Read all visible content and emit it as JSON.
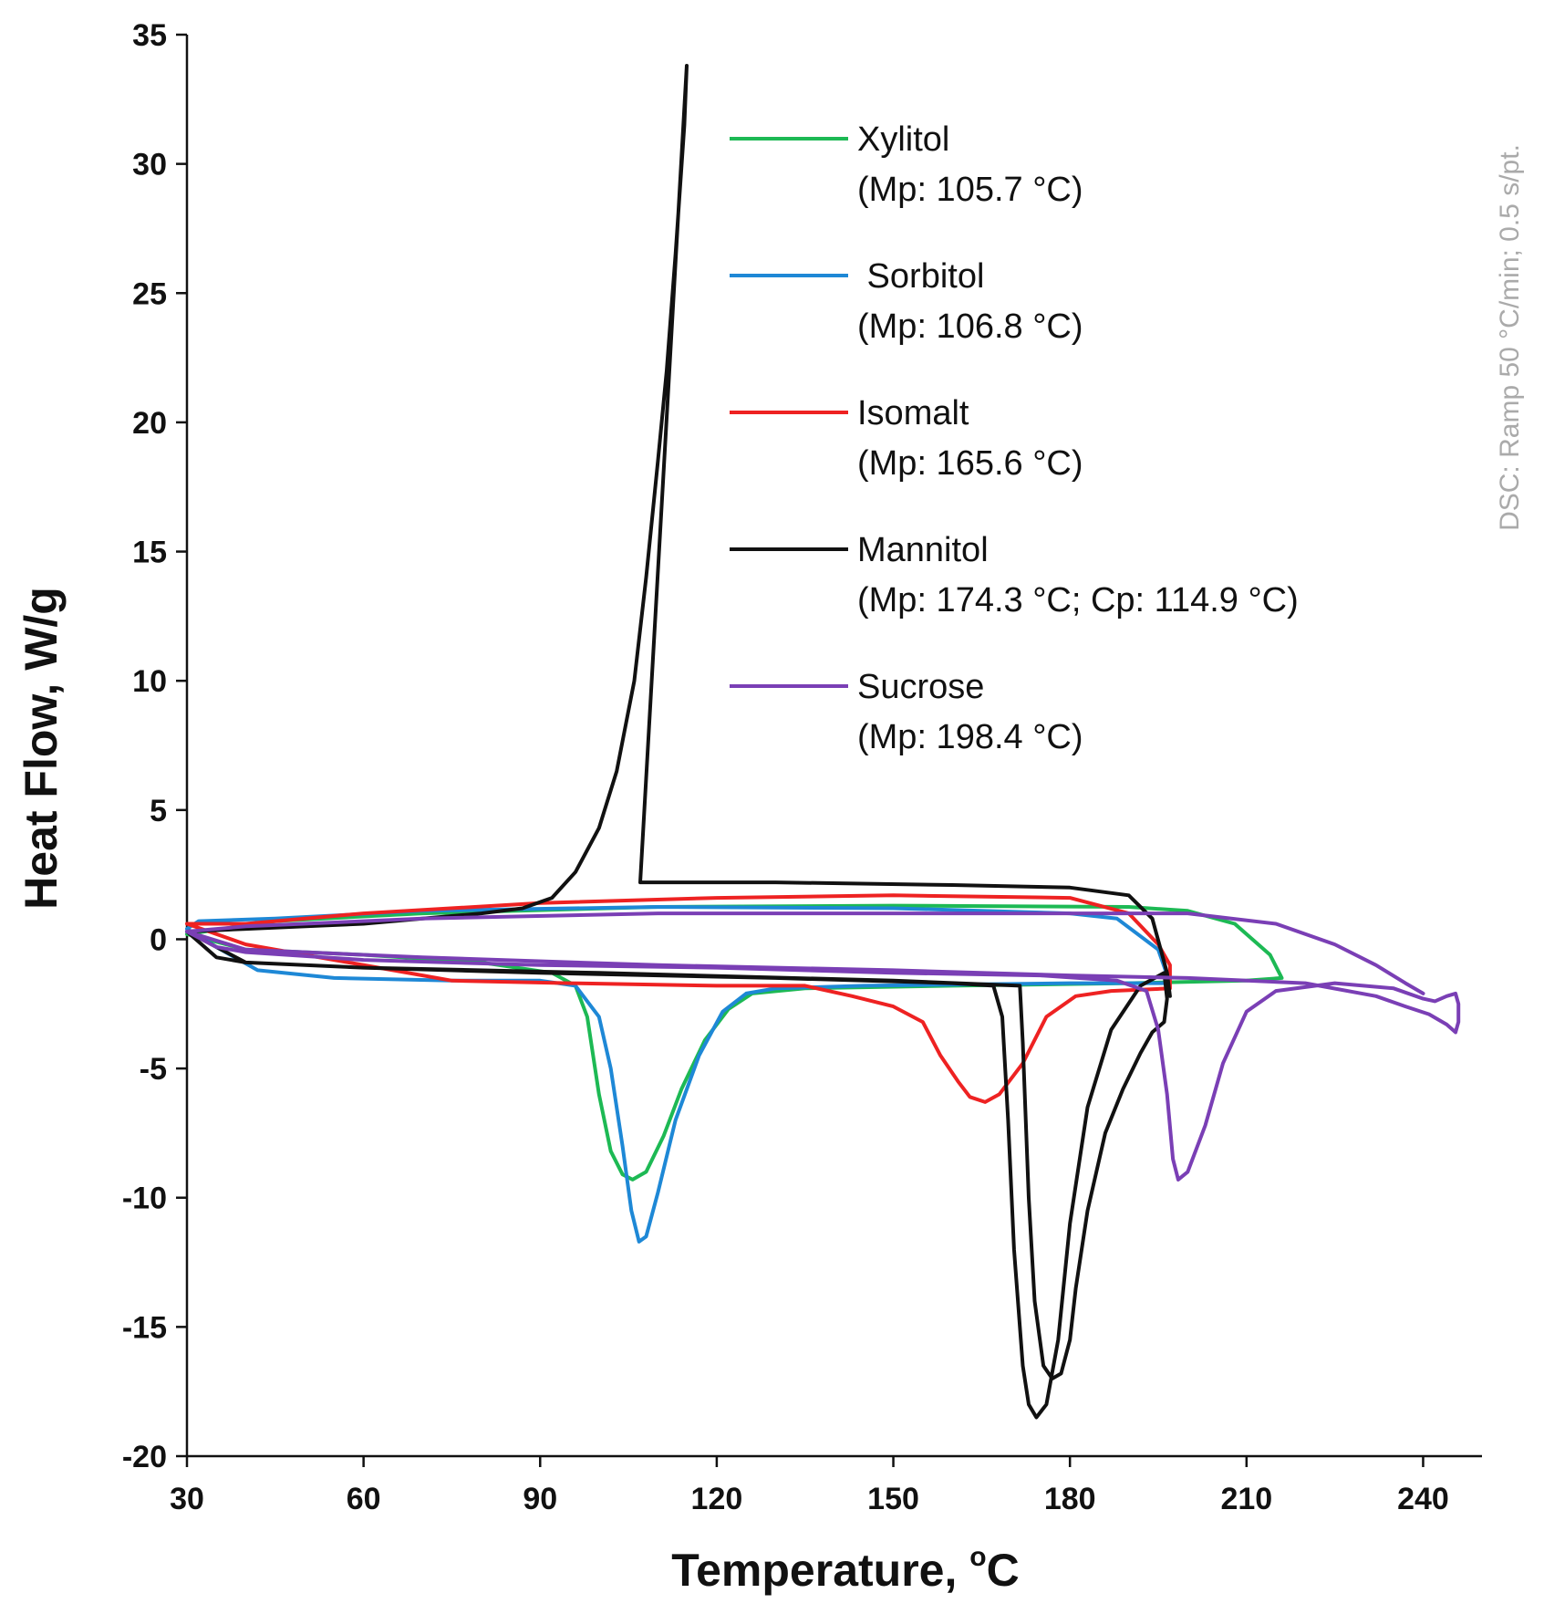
{
  "chart_data": {
    "type": "line",
    "xlabel": "Temperature, ",
    "xlabel_sup": "o",
    "xlabel_unit": "C",
    "ylabel": "Heat Flow, W/g",
    "xlim": [
      30,
      250
    ],
    "ylim": [
      -20,
      35
    ],
    "xticks": [
      30,
      60,
      90,
      120,
      150,
      180,
      210,
      240
    ],
    "yticks": [
      35,
      30,
      25,
      20,
      15,
      10,
      5,
      0,
      -5,
      -10,
      -15,
      -20
    ],
    "side_note": "DSC: Ramp 50 °C/min; 0.5 s/pt.",
    "legend_position": "upper-center",
    "series": [
      {
        "name": "Xylitol",
        "detail": "(Mp: 105.7 °C)",
        "color": "#1db954",
        "points": [
          [
            30,
            0.2
          ],
          [
            40,
            -0.4
          ],
          [
            60,
            -0.6
          ],
          [
            80,
            -0.9
          ],
          [
            92,
            -1.3
          ],
          [
            96,
            -1.8
          ],
          [
            98,
            -3
          ],
          [
            100,
            -6
          ],
          [
            102,
            -8.2
          ],
          [
            104,
            -9.1
          ],
          [
            105.7,
            -9.3
          ],
          [
            108,
            -9
          ],
          [
            111,
            -7.6
          ],
          [
            114,
            -5.8
          ],
          [
            118,
            -3.9
          ],
          [
            122,
            -2.7
          ],
          [
            126,
            -2.1
          ],
          [
            135,
            -1.9
          ],
          [
            160,
            -1.8
          ],
          [
            190,
            -1.7
          ],
          [
            210,
            -1.6
          ],
          [
            216,
            -1.5
          ],
          [
            214,
            -0.6
          ],
          [
            208,
            0.6
          ],
          [
            200,
            1.1
          ],
          [
            190,
            1.25
          ],
          [
            150,
            1.3
          ],
          [
            110,
            1.25
          ],
          [
            70,
            1.0
          ],
          [
            45,
            0.7
          ],
          [
            33,
            0.3
          ],
          [
            30,
            0.2
          ]
        ]
      },
      {
        "name": " Sorbitol",
        "detail": "(Mp: 106.8 °C)",
        "color": "#1e88d6",
        "points": [
          [
            30,
            0.4
          ],
          [
            35,
            -0.3
          ],
          [
            42,
            -1.2
          ],
          [
            55,
            -1.5
          ],
          [
            75,
            -1.6
          ],
          [
            90,
            -1.6
          ],
          [
            96,
            -1.8
          ],
          [
            100,
            -3
          ],
          [
            102,
            -5
          ],
          [
            104,
            -8
          ],
          [
            105.5,
            -10.5
          ],
          [
            106.8,
            -11.7
          ],
          [
            108,
            -11.5
          ],
          [
            110,
            -9.8
          ],
          [
            113,
            -7
          ],
          [
            117,
            -4.5
          ],
          [
            121,
            -2.8
          ],
          [
            125,
            -2.1
          ],
          [
            130,
            -1.9
          ],
          [
            145,
            -1.8
          ],
          [
            180,
            -1.7
          ],
          [
            195,
            -1.7
          ],
          [
            197,
            -1.7
          ],
          [
            195,
            -0.4
          ],
          [
            188,
            0.8
          ],
          [
            180,
            1.0
          ],
          [
            150,
            1.2
          ],
          [
            110,
            1.25
          ],
          [
            70,
            1.1
          ],
          [
            45,
            0.8
          ],
          [
            32,
            0.7
          ],
          [
            30,
            0.4
          ]
        ]
      },
      {
        "name": "Isomalt",
        "detail": "(Mp: 165.6 °C)",
        "color": "#ee2222",
        "points": [
          [
            30,
            0.6
          ],
          [
            40,
            -0.2
          ],
          [
            55,
            -0.8
          ],
          [
            65,
            -1.2
          ],
          [
            75,
            -1.6
          ],
          [
            95,
            -1.7
          ],
          [
            120,
            -1.8
          ],
          [
            135,
            -1.8
          ],
          [
            143,
            -2.2
          ],
          [
            150,
            -2.6
          ],
          [
            155,
            -3.2
          ],
          [
            158,
            -4.5
          ],
          [
            161,
            -5.5
          ],
          [
            163,
            -6.1
          ],
          [
            165.6,
            -6.3
          ],
          [
            168,
            -6.0
          ],
          [
            172,
            -4.8
          ],
          [
            176,
            -3.0
          ],
          [
            181,
            -2.2
          ],
          [
            187,
            -2.0
          ],
          [
            197,
            -1.9
          ],
          [
            197,
            -1.0
          ],
          [
            195,
            -0.2
          ],
          [
            190,
            1.0
          ],
          [
            180,
            1.6
          ],
          [
            150,
            1.7
          ],
          [
            120,
            1.6
          ],
          [
            90,
            1.4
          ],
          [
            60,
            1.0
          ],
          [
            40,
            0.6
          ],
          [
            30,
            0.6
          ]
        ]
      },
      {
        "name": "Mannitol",
        "detail": "(Mp: 174.3 °C; Cp: 114.9 °C)",
        "color": "#111111",
        "points": [
          [
            30,
            0.3
          ],
          [
            40,
            -0.9
          ],
          [
            60,
            -1.1
          ],
          [
            90,
            -1.3
          ],
          [
            130,
            -1.5
          ],
          [
            160,
            -1.7
          ],
          [
            167,
            -1.8
          ],
          [
            168.5,
            -3
          ],
          [
            169.5,
            -7
          ],
          [
            170.5,
            -12
          ],
          [
            172,
            -16.5
          ],
          [
            173,
            -18
          ],
          [
            174.3,
            -18.5
          ],
          [
            176,
            -18
          ],
          [
            178,
            -15.5
          ],
          [
            180,
            -11
          ],
          [
            183,
            -6.5
          ],
          [
            187,
            -3.5
          ],
          [
            192,
            -1.8
          ],
          [
            196,
            -1.3
          ],
          [
            196.5,
            -2.3
          ],
          [
            196,
            -3.2
          ],
          [
            194,
            -3.6
          ],
          [
            192,
            -4.4
          ],
          [
            189,
            -5.8
          ],
          [
            186,
            -7.5
          ],
          [
            183,
            -10.5
          ],
          [
            181,
            -13.5
          ],
          [
            180,
            -15.5
          ],
          [
            178.5,
            -16.8
          ],
          [
            177,
            -17
          ],
          [
            175.5,
            -16.5
          ],
          [
            174,
            -14
          ],
          [
            173,
            -10
          ],
          [
            172,
            -4
          ],
          [
            171.5,
            -1.8
          ],
          [
            150,
            -1.6
          ],
          [
            100,
            -1.3
          ],
          [
            60,
            -1.1
          ],
          [
            40,
            -0.9
          ],
          [
            35,
            -0.7
          ],
          [
            30,
            0.3
          ],
          [
            40,
            0.4
          ],
          [
            60,
            0.6
          ],
          [
            80,
            1.0
          ],
          [
            87,
            1.2
          ],
          [
            92,
            1.6
          ],
          [
            96,
            2.6
          ],
          [
            100,
            4.3
          ],
          [
            103,
            6.5
          ],
          [
            106,
            10
          ],
          [
            108,
            14
          ],
          [
            110,
            18.5
          ],
          [
            111.5,
            22
          ],
          [
            113,
            26.5
          ],
          [
            114.5,
            31.5
          ],
          [
            114.9,
            33.8
          ],
          [
            107,
            2.2
          ],
          [
            130,
            2.2
          ],
          [
            160,
            2.1
          ],
          [
            180,
            2.0
          ],
          [
            190,
            1.7
          ],
          [
            194,
            0.8
          ],
          [
            196.5,
            -1.3
          ],
          [
            197,
            -2.2
          ]
        ]
      },
      {
        "name": "Sucrose",
        "detail": "(Mp: 198.4 °C)",
        "color": "#7a3fb5",
        "points": [
          [
            30,
            0.3
          ],
          [
            35,
            -0.3
          ],
          [
            40,
            -0.5
          ],
          [
            60,
            -0.8
          ],
          [
            90,
            -1.0
          ],
          [
            120,
            -1.1
          ],
          [
            150,
            -1.3
          ],
          [
            175,
            -1.4
          ],
          [
            188,
            -1.6
          ],
          [
            193,
            -2.0
          ],
          [
            195,
            -3.5
          ],
          [
            196.5,
            -6
          ],
          [
            197.5,
            -8.5
          ],
          [
            198.4,
            -9.3
          ],
          [
            200,
            -9.0
          ],
          [
            203,
            -7.2
          ],
          [
            206,
            -4.8
          ],
          [
            210,
            -2.8
          ],
          [
            215,
            -2.0
          ],
          [
            225,
            -1.7
          ],
          [
            235,
            -1.9
          ],
          [
            240,
            -2.3
          ],
          [
            242,
            -2.4
          ],
          [
            244,
            -2.2
          ],
          [
            245.5,
            -2.1
          ],
          [
            246,
            -2.5
          ],
          [
            246,
            -3.2
          ],
          [
            245.5,
            -3.6
          ],
          [
            244,
            -3.3
          ],
          [
            241,
            -2.9
          ],
          [
            237,
            -2.6
          ],
          [
            232,
            -2.2
          ],
          [
            220,
            -1.7
          ],
          [
            200,
            -1.5
          ],
          [
            180,
            -1.4
          ],
          [
            150,
            -1.2
          ],
          [
            110,
            -1.0
          ],
          [
            70,
            -0.7
          ],
          [
            40,
            -0.4
          ],
          [
            30,
            0.3
          ],
          [
            40,
            0.5
          ],
          [
            70,
            0.8
          ],
          [
            110,
            1.0
          ],
          [
            150,
            1.0
          ],
          [
            180,
            1.0
          ],
          [
            200,
            1.0
          ],
          [
            215,
            0.6
          ],
          [
            225,
            -0.2
          ],
          [
            232,
            -1.0
          ],
          [
            237,
            -1.7
          ],
          [
            240,
            -2.1
          ]
        ]
      }
    ]
  }
}
